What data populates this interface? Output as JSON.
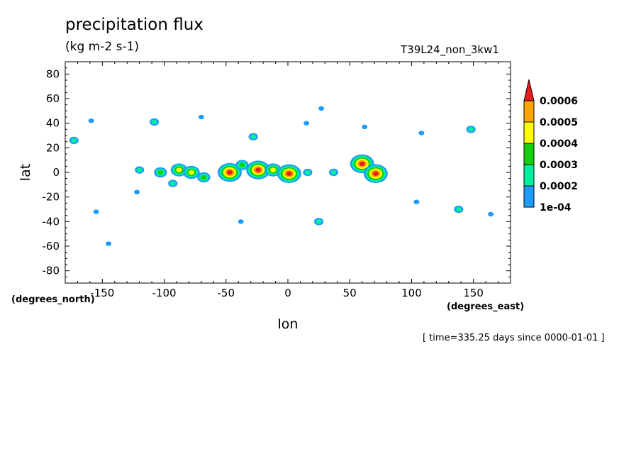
{
  "chart_data": {
    "type": "heatmap",
    "subtype": "filled-contour-map",
    "title": "precipitation flux",
    "units": "(kg m-2 s-1)",
    "run_label": "T39L24_non_3kw1",
    "time_label": "[ time=335.25 days since 0000-01-01 ]",
    "xlabel": "lon",
    "ylabel": "lat",
    "x_units_label": "(degrees_east)",
    "y_units_label": "(degrees_north)",
    "xlim": [
      -180,
      180
    ],
    "ylim": [
      -90,
      90
    ],
    "x_ticks": [
      -150,
      -100,
      -50,
      0,
      50,
      100,
      150
    ],
    "y_ticks": [
      80,
      60,
      40,
      20,
      0,
      -20,
      -40,
      -60,
      -80
    ],
    "colorbar": {
      "levels": [
        "1e-04",
        "0.0002",
        "0.0003",
        "0.0004",
        "0.0005",
        "0.0006"
      ],
      "colors": [
        "#1e9bff",
        "#00f0a0",
        "#10d010",
        "#ffff00",
        "#ffa500",
        "#e61e1e"
      ],
      "extend": "max"
    },
    "features": [
      {
        "lon": -173,
        "lat": 26,
        "level": 2
      },
      {
        "lon": -159,
        "lat": 42,
        "level": 1
      },
      {
        "lon": -108,
        "lat": 41,
        "level": 2
      },
      {
        "lon": -70,
        "lat": 45,
        "level": 1
      },
      {
        "lon": -28,
        "lat": 29,
        "level": 2
      },
      {
        "lon": 27,
        "lat": 52,
        "level": 1
      },
      {
        "lon": 15,
        "lat": 40,
        "level": 1
      },
      {
        "lon": 62,
        "lat": 37,
        "level": 1
      },
      {
        "lon": 108,
        "lat": 32,
        "level": 1
      },
      {
        "lon": 148,
        "lat": 35,
        "level": 2
      },
      {
        "lon": -120,
        "lat": 2,
        "level": 2
      },
      {
        "lon": -103,
        "lat": 0,
        "level": 3
      },
      {
        "lon": -88,
        "lat": 2,
        "level": 4
      },
      {
        "lon": -78,
        "lat": 0,
        "level": 4
      },
      {
        "lon": -68,
        "lat": -4,
        "level": 3
      },
      {
        "lon": -47,
        "lat": 0,
        "level": 6
      },
      {
        "lon": -37,
        "lat": 6,
        "level": 3
      },
      {
        "lon": -24,
        "lat": 2,
        "level": 6
      },
      {
        "lon": -12,
        "lat": 2,
        "level": 4
      },
      {
        "lon": 1,
        "lat": -1,
        "level": 6
      },
      {
        "lon": 16,
        "lat": 0,
        "level": 2
      },
      {
        "lon": 37,
        "lat": 0,
        "level": 2
      },
      {
        "lon": 60,
        "lat": 7,
        "level": 6
      },
      {
        "lon": 71,
        "lat": -1,
        "level": 6
      },
      {
        "lon": -93,
        "lat": -9,
        "level": 2
      },
      {
        "lon": -122,
        "lat": -16,
        "level": 1
      },
      {
        "lon": 104,
        "lat": -24,
        "level": 1
      },
      {
        "lon": 138,
        "lat": -30,
        "level": 2
      },
      {
        "lon": -155,
        "lat": -32,
        "level": 1
      },
      {
        "lon": -38,
        "lat": -40,
        "level": 1
      },
      {
        "lon": 25,
        "lat": -40,
        "level": 2
      },
      {
        "lon": 164,
        "lat": -34,
        "level": 1
      },
      {
        "lon": -145,
        "lat": -58,
        "level": 1
      }
    ]
  }
}
